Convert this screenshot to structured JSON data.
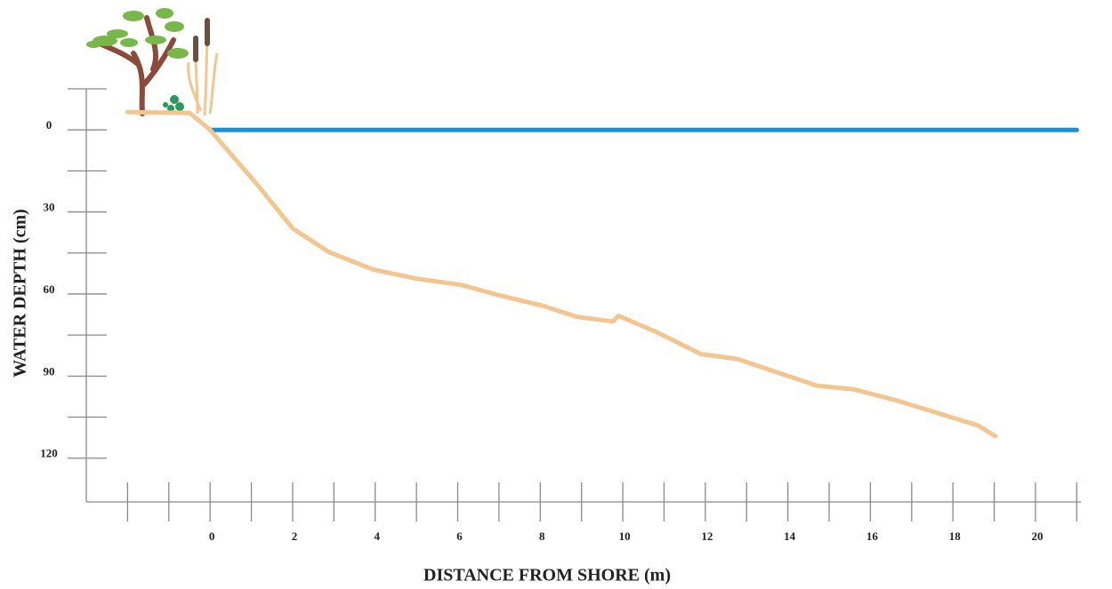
{
  "chart_data": {
    "type": "line",
    "x_label": "DISTANCE FROM SHORE (m)",
    "y_label": "WATER DEPTH (cm)",
    "xlim": [
      -3,
      21.1
    ],
    "ylim": [
      -15,
      136
    ],
    "y_inverted": true,
    "xticks": [
      0,
      2,
      4,
      6,
      8,
      10,
      12,
      14,
      16,
      18,
      20
    ],
    "xticks_minor": [
      -2,
      -1,
      1,
      3,
      5,
      7,
      9,
      11,
      13,
      15,
      17,
      19,
      21
    ],
    "yticks": [
      0,
      30,
      60,
      90,
      120
    ],
    "yticks_minor": [
      -15,
      15,
      45,
      75,
      105
    ],
    "series": [
      {
        "color": "#1a90d8",
        "width": 5,
        "x": [
          0,
          21
        ],
        "values": [
          0,
          0
        ]
      },
      {
        "color": "#f3c690",
        "width": 5,
        "x": [
          -2,
          -0.5,
          0,
          0.5,
          1.14,
          2.0,
          2.87,
          3.94,
          5.0,
          6.1,
          6.96,
          8.04,
          8.9,
          9.76,
          9.9,
          10.83,
          11.9,
          12.76,
          13.62,
          14.7,
          15.58,
          16.66,
          17.74,
          18.6,
          19.03
        ],
        "values": [
          -6.5,
          -6.2,
          0,
          8.8,
          20,
          36,
          44.6,
          51,
          54.4,
          56.7,
          60.3,
          64.2,
          68.4,
          70,
          68,
          74,
          82,
          83.7,
          88,
          93.5,
          94.8,
          99,
          104,
          108,
          112
        ]
      }
    ]
  }
}
